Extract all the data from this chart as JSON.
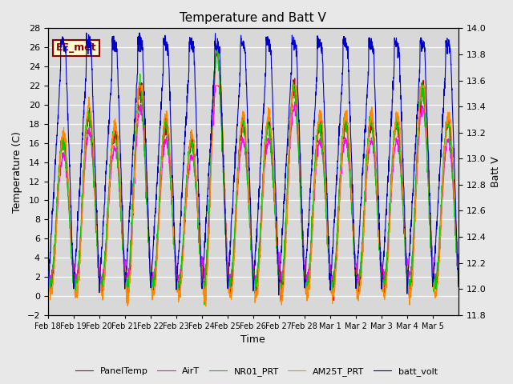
{
  "title": "Temperature and Batt V",
  "xlabel": "Time",
  "ylabel_left": "Temperature (C)",
  "ylabel_right": "Batt V",
  "ylim_left": [
    -2,
    28
  ],
  "ylim_right": [
    11.8,
    14.0
  ],
  "xtick_labels": [
    "Feb 18",
    "Feb 19",
    "Feb 20",
    "Feb 21",
    "Feb 22",
    "Feb 23",
    "Feb 24",
    "Feb 25",
    "Feb 26",
    "Feb 27",
    "Feb 28",
    "Mar 1",
    "Mar 2",
    "Mar 3",
    "Mar 4",
    "Mar 5"
  ],
  "legend_labels": [
    "PanelTemp",
    "AirT",
    "NR01_PRT",
    "AM25T_PRT",
    "batt_volt"
  ],
  "legend_colors": [
    "#cc0000",
    "#ff00ff",
    "#00cc00",
    "#ff8800",
    "#0000cc"
  ],
  "annotation_text": "EE_met",
  "annotation_fg": "#8b0000",
  "annotation_bg": "#fffacd",
  "bg_color": "#d8d8d8",
  "grid_color": "#ffffff",
  "fig_bg": "#e8e8e8",
  "num_days": 16,
  "points_per_day": 144
}
